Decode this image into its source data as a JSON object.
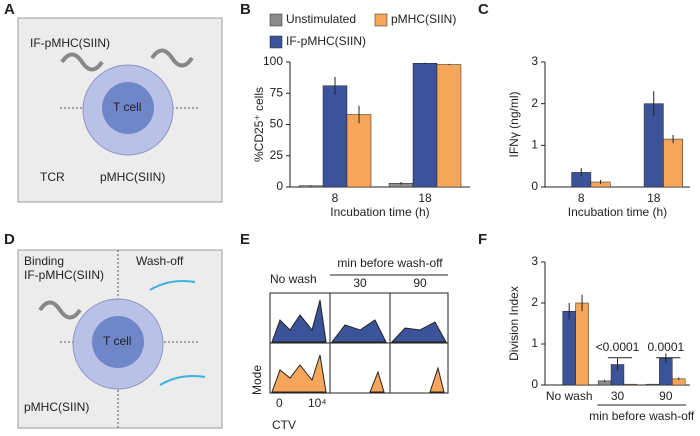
{
  "panels": [
    "A",
    "B",
    "C",
    "D",
    "E",
    "F"
  ],
  "diagram_a": {
    "if_label": "IF-pMHC(SIIN)",
    "cell": "T cell",
    "tcr": "TCR",
    "pmhc": "pMHC(SIIN)"
  },
  "diagram_d": {
    "binding": "Binding",
    "if_label": "IF-pMHC(SIIN)",
    "washoff": "Wash-off",
    "cell": "T cell",
    "pmhc": "pMHC(SIIN)"
  },
  "panel_e": {
    "no_wash": "No wash",
    "header": "min before wash-off",
    "col2": "30",
    "col3": "90",
    "ylabel": "Mode",
    "xlabel": "CTV",
    "tick0": "0",
    "tick1": "10⁴"
  },
  "chart_data": [
    {
      "type": "bar",
      "ylabel": "%CD25⁺ cells",
      "xlabel": "Incubation time (h)",
      "categories": [
        "8",
        "18"
      ],
      "legend": true,
      "series": [
        {
          "name": "Unstimulated",
          "color": "#8c8c8c",
          "values": [
            1,
            3
          ],
          "errors": [
            0.5,
            1
          ]
        },
        {
          "name": "IF-pMHC(SIIN)",
          "color": "#3b5499",
          "values": [
            81,
            99
          ],
          "errors": [
            7,
            0.5
          ]
        },
        {
          "name": "pMHC(SIIN)",
          "color": "#f5a65b",
          "values": [
            58,
            98
          ],
          "errors": [
            7,
            0.5
          ]
        }
      ],
      "ylim": [
        0,
        100
      ],
      "yticks": [
        0,
        25,
        50,
        75,
        100
      ]
    },
    {
      "type": "bar",
      "ylabel": "IFNγ (ng/ml)",
      "xlabel": "Incubation time (h)",
      "categories": [
        "8",
        "18"
      ],
      "legend": false,
      "series": [
        {
          "name": "Unstimulated",
          "color": "#8c8c8c",
          "values": [
            0,
            0
          ],
          "errors": [
            0,
            0
          ]
        },
        {
          "name": "IF-pMHC(SIIN)",
          "color": "#3b5499",
          "values": [
            0.35,
            2.0
          ],
          "errors": [
            0.1,
            0.3
          ]
        },
        {
          "name": "pMHC(SIIN)",
          "color": "#f5a65b",
          "values": [
            0.12,
            1.15
          ],
          "errors": [
            0.05,
            0.1
          ]
        }
      ],
      "ylim": [
        0,
        3
      ],
      "yticks": [
        0,
        1,
        2,
        3
      ]
    },
    {
      "type": "bar",
      "ylabel": "Division Index",
      "group_label": "min before wash-off",
      "categories": [
        "No wash",
        "30",
        "90"
      ],
      "legend": false,
      "annotations": [
        "<0.0001",
        "0.0001"
      ],
      "series": [
        {
          "name": "Unstimulated",
          "color": "#8c8c8c",
          "values": [
            0,
            0.1,
            0.02
          ],
          "errors": [
            0,
            0.03,
            0
          ]
        },
        {
          "name": "IF-pMHC(SIIN)",
          "color": "#3b5499",
          "values": [
            1.8,
            0.5,
            0.65
          ],
          "errors": [
            0.2,
            0.15,
            0.12
          ]
        },
        {
          "name": "pMHC(SIIN)",
          "color": "#f5a65b",
          "values": [
            2.0,
            0.02,
            0.15
          ],
          "errors": [
            0.2,
            0,
            0.03
          ]
        }
      ],
      "ylim": [
        0,
        3
      ],
      "yticks": [
        0,
        1,
        2,
        3
      ]
    }
  ]
}
